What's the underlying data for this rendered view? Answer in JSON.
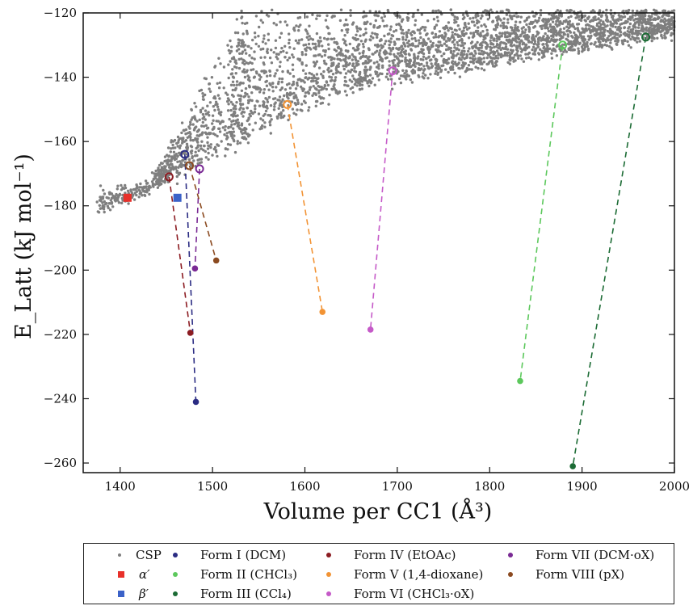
{
  "chart_data": {
    "type": "scatter",
    "title": "",
    "xlabel": "Volume per CC1 (Å³)",
    "ylabel": "E_Latt (kJ mol⁻¹)",
    "xlim": [
      1360,
      2000
    ],
    "ylim": [
      -263,
      -120
    ],
    "x_ticks": [
      "1400",
      "1500",
      "1600",
      "1700",
      "1800",
      "1900",
      "2000"
    ],
    "y_ticks": [
      "−120",
      "−140",
      "−160",
      "−180",
      "−200",
      "−220",
      "−240",
      "−260"
    ],
    "grid": false,
    "legend_position": "bottom",
    "csp_color": "#7f7f7f",
    "series": [
      {
        "name": "CSP",
        "marker": "small-dot",
        "color": "#7f7f7f"
      },
      {
        "name": "α′",
        "marker": "square",
        "color": "#e8302a",
        "points": [
          [
            1408,
            -177.5
          ]
        ]
      },
      {
        "name": "β′",
        "marker": "square",
        "color": "#3b62c8",
        "points": [
          [
            1462,
            -177.5
          ]
        ]
      },
      {
        "name": "Form I (DCM)",
        "color": "#2b2c83",
        "csp_match": [
          1470,
          -164
        ],
        "min": [
          1482,
          -241
        ]
      },
      {
        "name": "Form II (CHCl₃)",
        "color": "#5cc85c",
        "csp_match": [
          1879,
          -130
        ],
        "min": [
          1833,
          -234.5
        ]
      },
      {
        "name": "Form III (CCl₄)",
        "color": "#1b6b34",
        "csp_match": [
          1969,
          -127.5
        ],
        "min": [
          1890,
          -261
        ]
      },
      {
        "name": "Form IV (EtOAc)",
        "color": "#8c1c22",
        "csp_match": [
          1453,
          -171
        ],
        "min": [
          1476,
          -219.5
        ]
      },
      {
        "name": "Form V (1,4-dioxane)",
        "color": "#f29334",
        "csp_match": [
          1581,
          -148.5
        ],
        "min": [
          1619,
          -213
        ]
      },
      {
        "name": "Form VI (CHCl₃·oX)",
        "color": "#c55ac8",
        "csp_match": [
          1695,
          -138
        ],
        "min": [
          1671,
          -218.5
        ]
      },
      {
        "name": "Form VII (DCM·oX)",
        "color": "#7a2a94",
        "csp_match": [
          1486,
          -168.5
        ],
        "min": [
          1481,
          -199.5
        ]
      },
      {
        "name": "Form VIII (pX)",
        "color": "#8b4a20",
        "csp_match": [
          1475,
          -167.5
        ],
        "min": [
          1504,
          -197
        ]
      }
    ]
  }
}
